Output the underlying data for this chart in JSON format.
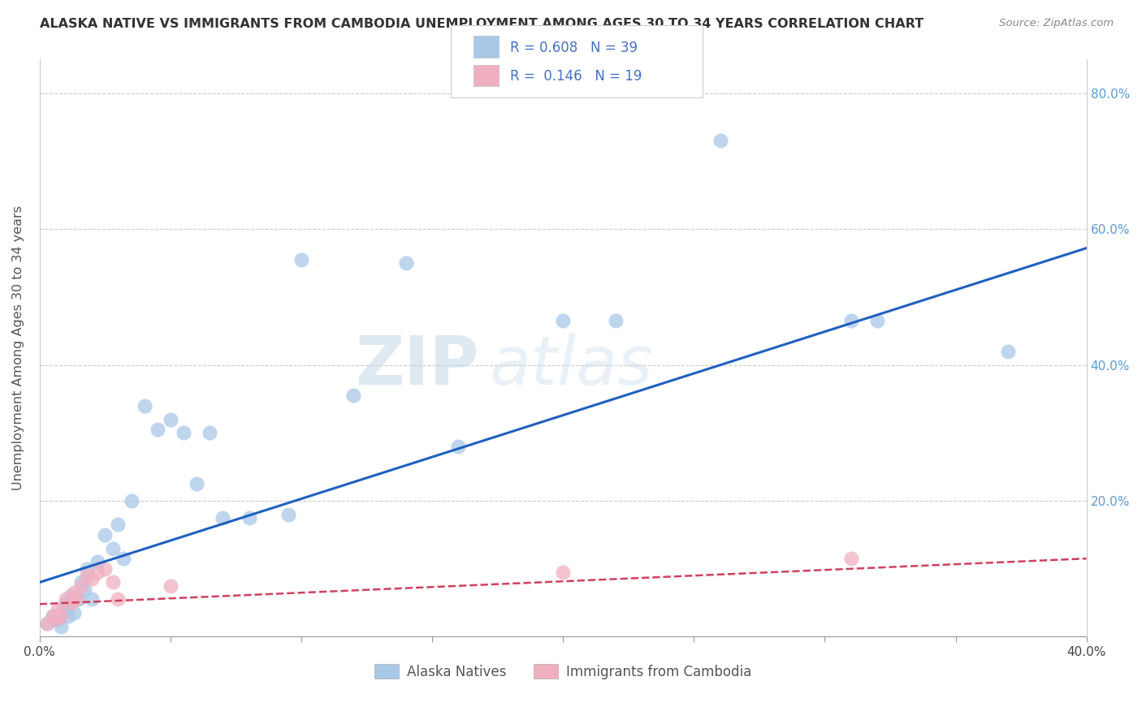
{
  "title": "ALASKA NATIVE VS IMMIGRANTS FROM CAMBODIA UNEMPLOYMENT AMONG AGES 30 TO 34 YEARS CORRELATION CHART",
  "source": "Source: ZipAtlas.com",
  "ylabel": "Unemployment Among Ages 30 to 34 years",
  "xlim": [
    0.0,
    0.4
  ],
  "ylim": [
    0.0,
    0.85
  ],
  "legend1_label": "Alaska Natives",
  "legend2_label": "Immigrants from Cambodia",
  "R1": 0.608,
  "N1": 39,
  "R2": 0.146,
  "N2": 19,
  "color_blue": "#a8c8e8",
  "color_pink": "#f0b0c0",
  "line_color_blue": "#2060c0",
  "line_color_pink": "#d04060",
  "watermark_zip": "ZIP",
  "watermark_atlas": "atlas",
  "alaska_x": [
    0.003,
    0.005,
    0.007,
    0.008,
    0.009,
    0.01,
    0.011,
    0.012,
    0.013,
    0.015,
    0.016,
    0.017,
    0.018,
    0.02,
    0.022,
    0.025,
    0.028,
    0.03,
    0.032,
    0.035,
    0.04,
    0.045,
    0.05,
    0.055,
    0.06,
    0.065,
    0.07,
    0.08,
    0.095,
    0.1,
    0.12,
    0.14,
    0.16,
    0.2,
    0.22,
    0.26,
    0.31,
    0.32,
    0.37
  ],
  "alaska_y": [
    0.02,
    0.03,
    0.025,
    0.015,
    0.04,
    0.05,
    0.03,
    0.06,
    0.035,
    0.055,
    0.08,
    0.07,
    0.1,
    0.055,
    0.11,
    0.15,
    0.13,
    0.165,
    0.115,
    0.2,
    0.34,
    0.305,
    0.32,
    0.3,
    0.225,
    0.3,
    0.175,
    0.175,
    0.18,
    0.555,
    0.355,
    0.55,
    0.28,
    0.465,
    0.465,
    0.73,
    0.465,
    0.465,
    0.42
  ],
  "cambodia_x": [
    0.003,
    0.005,
    0.006,
    0.007,
    0.008,
    0.01,
    0.012,
    0.013,
    0.014,
    0.016,
    0.018,
    0.02,
    0.022,
    0.025,
    0.028,
    0.03,
    0.05,
    0.2,
    0.31
  ],
  "cambodia_y": [
    0.02,
    0.03,
    0.025,
    0.04,
    0.03,
    0.055,
    0.05,
    0.065,
    0.055,
    0.075,
    0.09,
    0.085,
    0.095,
    0.1,
    0.08,
    0.055,
    0.075,
    0.095,
    0.115
  ],
  "blue_line_x0": 0.0,
  "blue_line_y0": 0.08,
  "blue_line_x1": 0.4,
  "blue_line_y1": 0.572,
  "pink_line_x0": 0.0,
  "pink_line_y0": 0.048,
  "pink_line_x1": 0.4,
  "pink_line_y1": 0.115
}
